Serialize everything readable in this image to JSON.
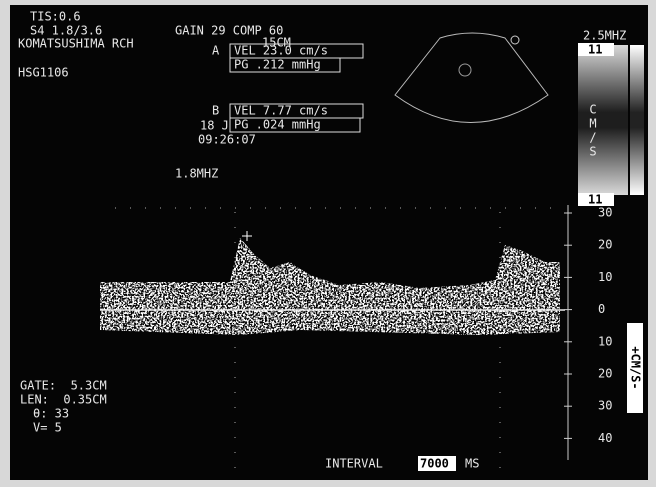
{
  "header": {
    "tis": "TIS:0.6",
    "probe": "S4 1.8/3.6",
    "gain": "GAIN 29 COMP 60",
    "site": "KOMATSUSHIMA RCH",
    "depth": "15CM",
    "id": "HSG1106"
  },
  "measurements": {
    "a_marker": "A",
    "a_vel": "VEL 23.0 cm/s",
    "a_pg": "PG .212 mmHg",
    "b_marker": "B",
    "b_vel": "VEL 7.77 cm/s",
    "b_pg": "PG .024 mmHg",
    "date": "18 J",
    "time": "09:26:07"
  },
  "doppler_freq": "1.8MHZ",
  "color_bar": {
    "freq": "2.5MHZ",
    "top": "11",
    "bottom": "11",
    "unit_letters": [
      "C",
      "M",
      "/",
      "S"
    ]
  },
  "scale": {
    "labels": [
      "30",
      "20",
      "10",
      "0",
      "10",
      "20",
      "30",
      "40"
    ],
    "unit": "+CM/S-"
  },
  "gate": {
    "gate": "GATE:  5.3CM",
    "len": "LEN:  0.35CM",
    "theta": "θ: 33",
    "v": "V= 5"
  },
  "interval": {
    "label": "INTERVAL",
    "value": "7000",
    "unit": "MS"
  }
}
